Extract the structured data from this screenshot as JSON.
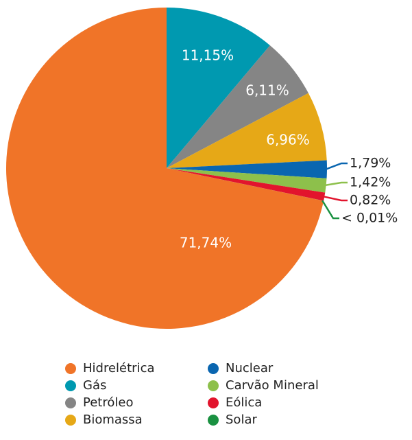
{
  "chart_data": {
    "type": "pie",
    "categories": [
      "Hidrelétrica",
      "Gás",
      "Petróleo",
      "Biomassa",
      "Nuclear",
      "Carvão Mineral",
      "Eólica",
      "Solar"
    ],
    "values": [
      71.74,
      11.15,
      6.11,
      6.96,
      1.79,
      1.42,
      0.82,
      0.01
    ],
    "value_labels": [
      "71,74%",
      "11,15%",
      "6,11%",
      "6,96%",
      "1,79%",
      "1,42%",
      "0,82%",
      "< 0,01%"
    ],
    "colors": [
      "#f07428",
      "#0099b0",
      "#858585",
      "#e6a817",
      "#0a66b0",
      "#8dc04b",
      "#e2142d",
      "#1a9141"
    ]
  }
}
